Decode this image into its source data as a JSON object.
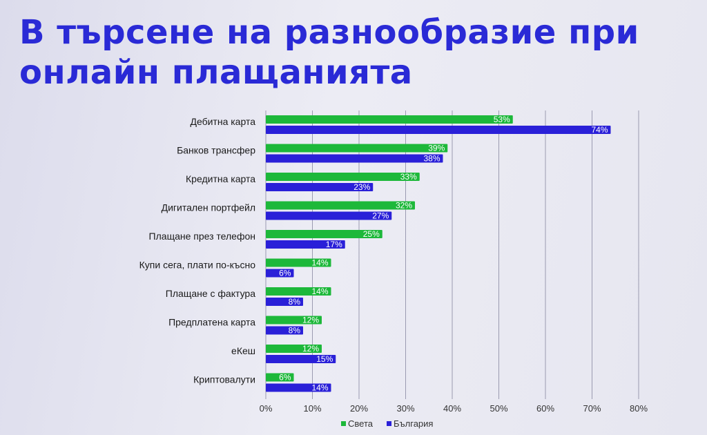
{
  "title": {
    "line1": "В търсене на разнообразие при",
    "line2": "онлайн плащанията"
  },
  "colors": {
    "title": "#2a2ad6",
    "world": "#1db83a",
    "bulgaria": "#2a20d8",
    "grid": "#9a9ab0"
  },
  "chart_data": {
    "type": "bar",
    "orientation": "horizontal",
    "categories": [
      "Дебитна карта",
      "Банков трансфер",
      "Кредитна карта",
      "Дигитален портфейл",
      "Плащане през телефон",
      "Купи сега, плати по-късно",
      "Плащане с фактура",
      "Предплатена карта",
      "еКеш",
      "Криптовалути"
    ],
    "series": [
      {
        "name": "Света",
        "values": [
          53,
          39,
          33,
          32,
          25,
          14,
          14,
          12,
          12,
          6
        ]
      },
      {
        "name": "България",
        "values": [
          74,
          38,
          23,
          27,
          17,
          6,
          8,
          8,
          15,
          14
        ]
      }
    ],
    "value_labels": [
      [
        "53%",
        "39%",
        "33%",
        "32%",
        "25%",
        "14%",
        "14%",
        "12%",
        "12%",
        "6%"
      ],
      [
        "74%",
        "38%",
        "23%",
        "27%",
        "17%",
        "6%",
        "8%",
        "8%",
        "15%",
        "14%"
      ]
    ],
    "xlim": [
      0,
      80
    ],
    "xticks": [
      0,
      10,
      20,
      30,
      40,
      50,
      60,
      70,
      80
    ],
    "xtick_labels": [
      "0%",
      "10%",
      "20%",
      "30%",
      "40%",
      "50%",
      "60%",
      "70%",
      "80%"
    ],
    "grid": true,
    "legend": "bottom-center"
  }
}
